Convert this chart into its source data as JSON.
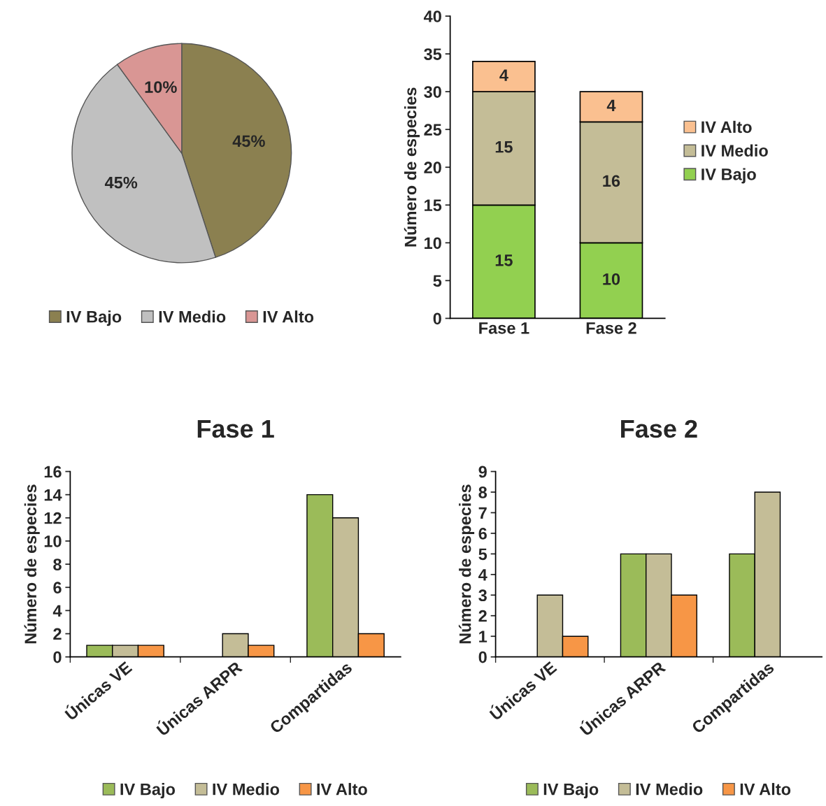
{
  "chart_data": [
    {
      "type": "pie",
      "categories": [
        "IV Bajo",
        "IV Medio",
        "IV Alto"
      ],
      "values": [
        45,
        45,
        10
      ],
      "colors": [
        "#8b8050",
        "#c0c0c0",
        "#d99694"
      ],
      "value_labels": [
        "45%",
        "45%",
        "10%"
      ],
      "legend": "bottom"
    },
    {
      "type": "bar",
      "stacked": true,
      "categories": [
        "Fase 1",
        "Fase 2"
      ],
      "ylabel": "Número de especies",
      "ylim": [
        0,
        40
      ],
      "yticks": [
        0,
        5,
        10,
        15,
        20,
        25,
        30,
        35,
        40
      ],
      "grid": false,
      "legend": "right",
      "data_labels": true,
      "series": [
        {
          "name": "IV Bajo",
          "color": "#92d050",
          "values": [
            15,
            10
          ]
        },
        {
          "name": "IV Medio",
          "color": "#c4bd97",
          "values": [
            15,
            16
          ]
        },
        {
          "name": "IV Alto",
          "color": "#fac090",
          "values": [
            4,
            4
          ]
        }
      ]
    },
    {
      "type": "bar",
      "title": "Fase 1",
      "categories": [
        "Únicas VE",
        "Únicas ARPR",
        "Compartidas"
      ],
      "ylabel": "Número de especies",
      "ylim": [
        0,
        16
      ],
      "yticks": [
        0,
        2,
        4,
        6,
        8,
        10,
        12,
        14,
        16
      ],
      "grid": false,
      "legend": "bottom",
      "series": [
        {
          "name": "IV Bajo",
          "color": "#9bbb59",
          "values": [
            1,
            null,
            14
          ]
        },
        {
          "name": "IV Medio",
          "color": "#c4bd97",
          "values": [
            1,
            2,
            12
          ]
        },
        {
          "name": "IV Alto",
          "color": "#f79646",
          "values": [
            1,
            1,
            2
          ]
        }
      ]
    },
    {
      "type": "bar",
      "title": "Fase 2",
      "categories": [
        "Únicas VE",
        "Únicas ARPR",
        "Compartidas"
      ],
      "ylabel": "Número de especies",
      "ylim": [
        0,
        9
      ],
      "yticks": [
        0,
        1,
        2,
        3,
        4,
        5,
        6,
        7,
        8,
        9
      ],
      "grid": false,
      "legend": "bottom",
      "series": [
        {
          "name": "IV Bajo",
          "color": "#9bbb59",
          "values": [
            null,
            5,
            5
          ]
        },
        {
          "name": "IV Medio",
          "color": "#c4bd97",
          "values": [
            3,
            5,
            8
          ]
        },
        {
          "name": "IV Alto",
          "color": "#f79646",
          "values": [
            1,
            3,
            null
          ]
        }
      ]
    }
  ]
}
